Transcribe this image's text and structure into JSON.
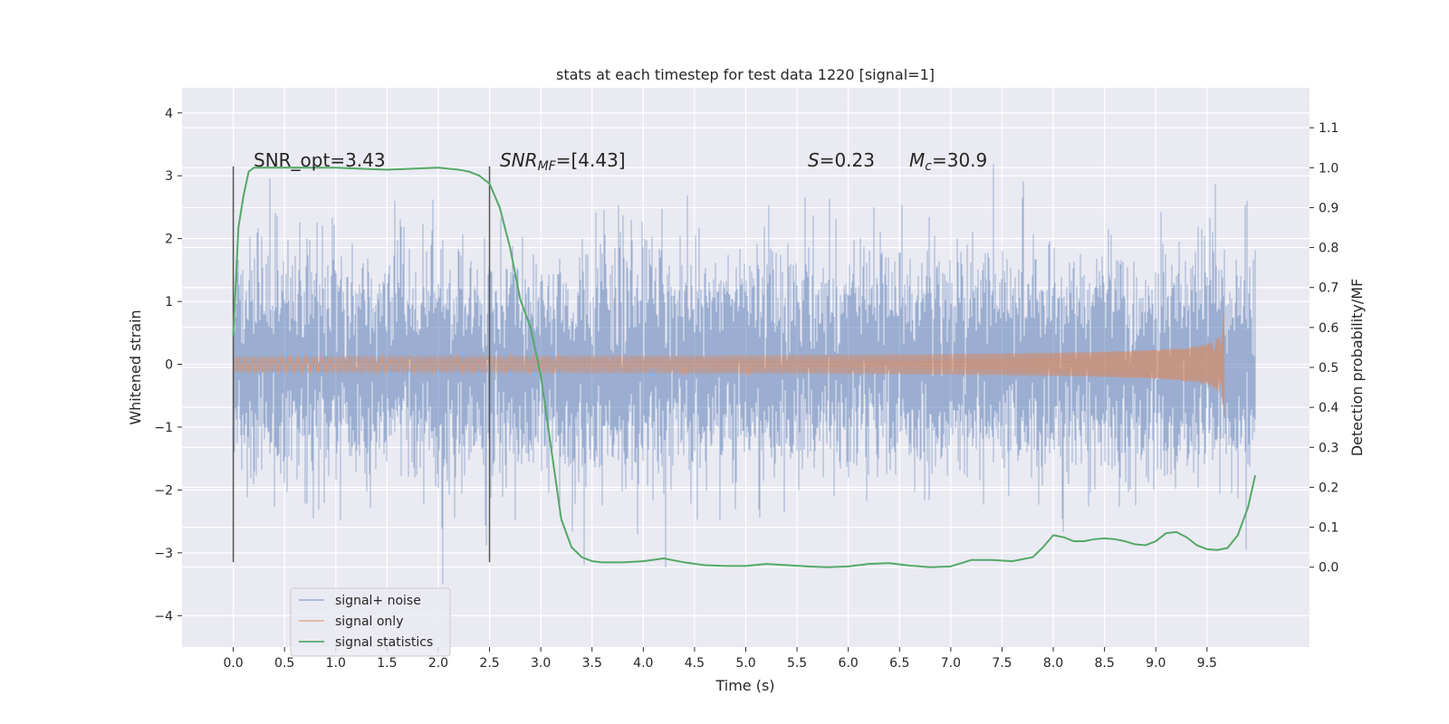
{
  "chart_data": {
    "type": "line",
    "title": "stats at each timestep for test data 1220 [signal=1]",
    "xlabel": "Time (s)",
    "ylabel_left": "Whitened strain",
    "ylabel_right": "Detection probability/MF",
    "xlim": [
      -0.5,
      10.5
    ],
    "ylim_left": [
      -4.5,
      4.4
    ],
    "ylim_right": [
      -0.2,
      1.2
    ],
    "x_ticks": [
      "0.0",
      "0.5",
      "1.0",
      "1.5",
      "2.0",
      "2.5",
      "3.0",
      "3.5",
      "4.0",
      "4.5",
      "5.0",
      "5.5",
      "6.0",
      "6.5",
      "7.0",
      "7.5",
      "8.0",
      "8.5",
      "9.0",
      "9.5"
    ],
    "x_tick_values": [
      0.0,
      0.5,
      1.0,
      1.5,
      2.0,
      2.5,
      3.0,
      3.5,
      4.0,
      4.5,
      5.0,
      5.5,
      6.0,
      6.5,
      7.0,
      7.5,
      8.0,
      8.5,
      9.0,
      9.5
    ],
    "y_left_ticks": [
      -4,
      -3,
      -2,
      -1,
      0,
      1,
      2,
      3,
      4
    ],
    "y_left_tick_labels": [
      "−4",
      "−3",
      "−2",
      "−1",
      "0",
      "1",
      "2",
      "3",
      "4"
    ],
    "y_right_ticks": [
      0.0,
      0.1,
      0.2,
      0.3,
      0.4,
      0.5,
      0.6,
      0.7,
      0.8,
      0.9,
      1.0,
      1.1
    ],
    "y_right_tick_labels": [
      "0.0",
      "0.1",
      "0.2",
      "0.3",
      "0.4",
      "0.5",
      "0.6",
      "0.7",
      "0.8",
      "0.9",
      "1.0",
      "1.1"
    ],
    "grid": true,
    "legend_position": "lower-left",
    "annotations": {
      "snr_opt": "SNR_opt=3.43",
      "snr_mf_base": "SNR",
      "snr_mf_sub": "MF",
      "snr_mf_value": "=[4.43]",
      "s_base": "S",
      "s_value": "=0.23",
      "mc_base": "M",
      "mc_sub": "c",
      "mc_value": "=30.9"
    },
    "window_lines": {
      "x": [
        0.0,
        2.5
      ],
      "ymin": -3.15,
      "ymax": 3.15
    },
    "series": [
      {
        "name": "signal+ noise",
        "color": "#4c72b0",
        "axis": "left",
        "kind": "noise",
        "x_range": [
          0.0,
          9.97
        ],
        "std": 0.78
      },
      {
        "name": "signal only",
        "color": "#dd8452",
        "axis": "left",
        "kind": "chirp",
        "x_range": [
          0.0,
          9.67
        ],
        "merger_time": 9.67,
        "peak_amplitude": 0.85
      },
      {
        "name": "signal statistics",
        "color": "#55a868",
        "axis": "right",
        "kind": "line",
        "x": [
          0.0,
          0.05,
          0.1,
          0.15,
          0.2,
          0.3,
          0.5,
          1.0,
          1.5,
          2.0,
          2.2,
          2.3,
          2.4,
          2.5,
          2.6,
          2.7,
          2.8,
          2.9,
          3.0,
          3.1,
          3.2,
          3.3,
          3.4,
          3.5,
          3.6,
          3.8,
          4.0,
          4.2,
          4.4,
          4.6,
          4.8,
          5.0,
          5.2,
          5.4,
          5.6,
          5.8,
          6.0,
          6.2,
          6.4,
          6.6,
          6.8,
          7.0,
          7.2,
          7.4,
          7.6,
          7.8,
          7.9,
          8.0,
          8.1,
          8.2,
          8.3,
          8.4,
          8.5,
          8.6,
          8.7,
          8.8,
          8.9,
          9.0,
          9.1,
          9.2,
          9.3,
          9.4,
          9.5,
          9.6,
          9.7,
          9.8,
          9.9,
          9.97
        ],
        "y": [
          0.58,
          0.85,
          0.93,
          0.99,
          1.0,
          1.0,
          1.0,
          1.0,
          0.995,
          1.0,
          0.995,
          0.99,
          0.98,
          0.96,
          0.9,
          0.8,
          0.67,
          0.6,
          0.48,
          0.3,
          0.12,
          0.05,
          0.025,
          0.015,
          0.012,
          0.012,
          0.015,
          0.022,
          0.012,
          0.005,
          0.003,
          0.003,
          0.008,
          0.005,
          0.002,
          0.0,
          0.002,
          0.008,
          0.01,
          0.004,
          0.0,
          0.002,
          0.018,
          0.018,
          0.015,
          0.025,
          0.05,
          0.08,
          0.075,
          0.065,
          0.065,
          0.07,
          0.072,
          0.07,
          0.065,
          0.057,
          0.055,
          0.065,
          0.085,
          0.088,
          0.075,
          0.055,
          0.045,
          0.043,
          0.048,
          0.08,
          0.15,
          0.23
        ]
      }
    ]
  }
}
